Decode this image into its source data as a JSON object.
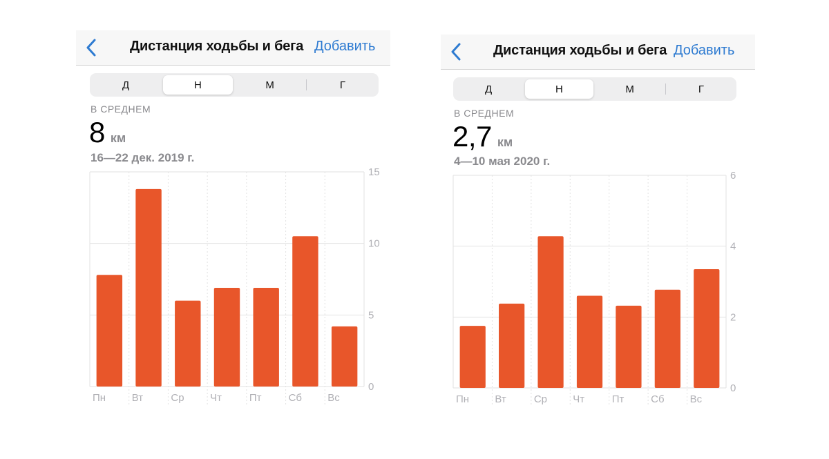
{
  "panels": [
    {
      "nav": {
        "back_icon": "chevron-left-icon",
        "title": "Дистанция ходьбы и бега",
        "add_label": "Добавить"
      },
      "segments": [
        "Д",
        "Н",
        "М",
        "Г"
      ],
      "active_segment": 1,
      "summary": {
        "label": "В СРЕДНЕМ",
        "value": "8",
        "unit": "км",
        "date_range": "16—22 дек. 2019 г."
      }
    },
    {
      "nav": {
        "back_icon": "chevron-left-icon",
        "title": "Дистанция ходьбы и бега",
        "add_label": "Добавить"
      },
      "segments": [
        "Д",
        "Н",
        "М",
        "Г"
      ],
      "active_segment": 1,
      "summary": {
        "label": "В СРЕДНЕМ",
        "value": "2,7",
        "unit": "км",
        "date_range": "4—10 мая 2020 г."
      }
    }
  ],
  "colors": {
    "bar": "#e8562a",
    "accent": "#2e7bd1",
    "grid": "#e2e2e2"
  },
  "chart_data": [
    {
      "type": "bar",
      "categories": [
        "Пн",
        "Вт",
        "Ср",
        "Чт",
        "Пт",
        "Сб",
        "Вс"
      ],
      "values": [
        7.8,
        13.8,
        6.0,
        6.9,
        6.9,
        10.5,
        4.2
      ],
      "ylim": [
        0,
        15
      ],
      "yticks": [
        "0",
        "5",
        "10",
        "15"
      ],
      "grid": true
    },
    {
      "type": "bar",
      "categories": [
        "Пн",
        "Вт",
        "Ср",
        "Чт",
        "Пт",
        "Сб",
        "Вс"
      ],
      "values": [
        1.75,
        2.38,
        4.28,
        2.6,
        2.32,
        2.77,
        3.35
      ],
      "ylim": [
        0,
        6
      ],
      "yticks": [
        "0",
        "2",
        "4",
        "6"
      ],
      "grid": true
    }
  ]
}
